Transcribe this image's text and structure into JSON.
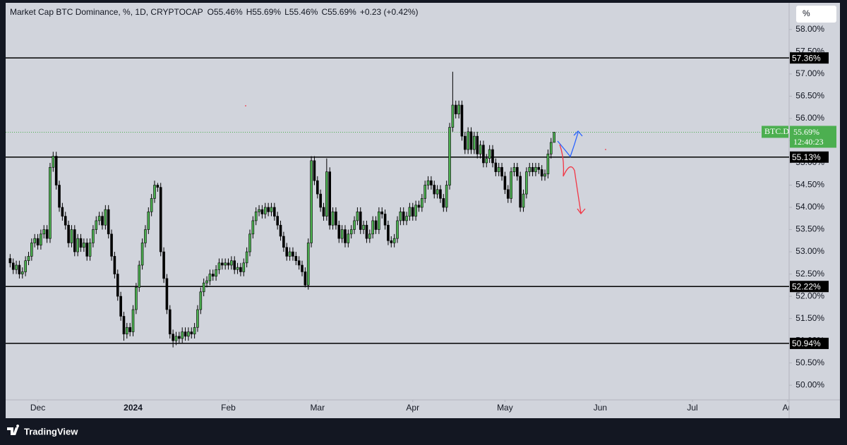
{
  "chart_data": {
    "type": "candlestick",
    "title": "Market Cap BTC Dominance, %, 1D, CRYPTOCAP",
    "ohlc_legend": [
      "O55.46%",
      "H55.69%",
      "L55.46%",
      "C55.69%",
      "+0.23 (+0.42%)"
    ],
    "x": [
      "2023-11-22",
      "2023-11-23",
      "2023-11-24",
      "2023-11-25",
      "2023-11-26",
      "2023-11-27",
      "2023-11-28",
      "2023-11-29",
      "2023-11-30",
      "2023-12-01",
      "2023-12-02",
      "2023-12-03",
      "2023-12-04",
      "2023-12-05",
      "2023-12-06",
      "2023-12-07",
      "2023-12-08",
      "2023-12-09",
      "2023-12-10",
      "2023-12-11",
      "2023-12-12",
      "2023-12-13",
      "2023-12-14",
      "2023-12-15",
      "2023-12-16",
      "2023-12-17",
      "2023-12-18",
      "2023-12-19",
      "2023-12-20",
      "2023-12-21",
      "2023-12-22",
      "2023-12-23",
      "2023-12-24",
      "2023-12-25",
      "2023-12-26",
      "2023-12-27",
      "2023-12-28",
      "2023-12-29",
      "2023-12-30",
      "2023-12-31",
      "2024-01-01",
      "2024-01-02",
      "2024-01-03",
      "2024-01-04",
      "2024-01-05",
      "2024-01-06",
      "2024-01-07",
      "2024-01-08",
      "2024-01-09",
      "2024-01-10",
      "2024-01-11",
      "2024-01-12",
      "2024-01-13",
      "2024-01-14",
      "2024-01-15",
      "2024-01-16",
      "2024-01-17",
      "2024-01-18",
      "2024-01-19",
      "2024-01-20",
      "2024-01-21",
      "2024-01-22",
      "2024-01-23",
      "2024-01-24",
      "2024-01-25",
      "2024-01-26",
      "2024-01-27",
      "2024-01-28",
      "2024-01-29",
      "2024-01-30",
      "2024-01-31",
      "2024-02-01",
      "2024-02-02",
      "2024-02-03",
      "2024-02-04",
      "2024-02-05",
      "2024-02-06",
      "2024-02-07",
      "2024-02-08",
      "2024-02-09",
      "2024-02-10",
      "2024-02-11",
      "2024-02-12",
      "2024-02-13",
      "2024-02-14",
      "2024-02-15",
      "2024-02-16",
      "2024-02-17",
      "2024-02-18",
      "2024-02-19",
      "2024-02-20",
      "2024-02-21",
      "2024-02-22",
      "2024-02-23",
      "2024-02-24",
      "2024-02-25",
      "2024-02-26",
      "2024-02-27",
      "2024-02-28",
      "2024-02-29",
      "2024-03-01",
      "2024-03-02",
      "2024-03-03",
      "2024-03-04",
      "2024-03-05",
      "2024-03-06",
      "2024-03-07",
      "2024-03-08",
      "2024-03-09",
      "2024-03-10",
      "2024-03-11",
      "2024-03-12",
      "2024-03-13",
      "2024-03-14",
      "2024-03-15",
      "2024-03-16",
      "2024-03-17",
      "2024-03-18",
      "2024-03-19",
      "2024-03-20",
      "2024-03-21",
      "2024-03-22",
      "2024-03-23",
      "2024-03-24",
      "2024-03-25",
      "2024-03-26",
      "2024-03-27",
      "2024-03-28",
      "2024-03-29",
      "2024-03-30",
      "2024-03-31",
      "2024-04-01",
      "2024-04-02",
      "2024-04-03",
      "2024-04-04",
      "2024-04-05",
      "2024-04-06",
      "2024-04-07",
      "2024-04-08",
      "2024-04-09",
      "2024-04-10",
      "2024-04-11",
      "2024-04-12",
      "2024-04-13",
      "2024-04-14",
      "2024-04-15",
      "2024-04-16",
      "2024-04-17",
      "2024-04-18",
      "2024-04-19",
      "2024-04-20",
      "2024-04-21",
      "2024-04-22",
      "2024-04-23",
      "2024-04-24",
      "2024-04-25",
      "2024-04-26",
      "2024-04-27",
      "2024-04-28",
      "2024-04-29",
      "2024-04-30",
      "2024-05-01",
      "2024-05-02",
      "2024-05-03",
      "2024-05-04",
      "2024-05-05",
      "2024-05-06",
      "2024-05-07",
      "2024-05-08",
      "2024-05-09",
      "2024-05-10",
      "2024-05-11",
      "2024-05-12",
      "2024-05-13",
      "2024-05-14",
      "2024-05-15",
      "2024-05-16",
      "2024-05-17"
    ],
    "open": [
      52.85,
      52.75,
      52.6,
      52.7,
      52.5,
      52.55,
      52.8,
      52.9,
      53.2,
      53.3,
      53.15,
      53.4,
      53.5,
      53.3,
      54.9,
      55.15,
      54.5,
      54.0,
      53.8,
      53.6,
      53.2,
      53.5,
      53.0,
      53.3,
      53.1,
      53.2,
      52.9,
      53.2,
      53.5,
      53.7,
      53.8,
      53.6,
      53.95,
      53.4,
      52.9,
      52.5,
      52.0,
      51.55,
      51.15,
      51.3,
      51.2,
      51.7,
      52.2,
      52.7,
      53.2,
      53.5,
      53.9,
      54.2,
      54.5,
      54.45,
      53.0,
      52.4,
      51.7,
      51.15,
      51.0,
      51.1,
      51.05,
      51.2,
      51.1,
      51.2,
      51.15,
      51.3,
      51.7,
      52.1,
      52.3,
      52.35,
      52.5,
      52.45,
      52.6,
      52.75,
      52.7,
      52.75,
      52.7,
      52.8,
      52.6,
      52.65,
      52.55,
      52.75,
      53.0,
      53.4,
      53.7,
      53.9,
      53.95,
      53.85,
      54.0,
      53.9,
      54.0,
      53.8,
      53.6,
      53.35,
      53.1,
      52.9,
      53.0,
      52.9,
      52.8,
      52.7,
      52.55,
      52.25,
      53.2,
      55.05,
      54.6,
      54.3,
      54.0,
      53.8,
      54.8,
      53.6,
      53.9,
      53.6,
      53.3,
      53.5,
      53.2,
      53.4,
      53.5,
      53.7,
      53.9,
      53.5,
      53.6,
      53.3,
      53.4,
      53.7,
      53.5,
      53.9,
      53.85,
      53.6,
      53.25,
      53.2,
      53.3,
      53.7,
      53.9,
      53.7,
      53.8,
      54.0,
      53.8,
      54.05,
      54.0,
      54.2,
      54.5,
      54.6,
      54.5,
      54.3,
      54.4,
      54.2,
      54.0,
      54.5,
      55.8,
      56.3,
      56.1,
      56.3,
      55.6,
      55.3,
      55.7,
      55.3,
      55.6,
      55.2,
      55.4,
      55.0,
      55.1,
      55.3,
      55.0,
      54.8,
      54.9,
      54.7,
      54.4,
      54.2,
      54.8,
      54.9,
      54.7,
      54.0,
      54.3,
      54.8,
      54.9,
      54.8,
      54.9,
      54.85,
      54.7,
      54.75,
      55.2,
      55.46
    ],
    "high": [
      52.95,
      52.85,
      52.8,
      52.8,
      52.65,
      52.9,
      53.0,
      53.3,
      53.4,
      53.4,
      53.5,
      53.6,
      53.6,
      55.0,
      55.25,
      55.25,
      54.6,
      54.1,
      53.9,
      53.7,
      53.6,
      53.6,
      53.4,
      53.4,
      53.3,
      53.3,
      53.3,
      53.6,
      53.8,
      53.9,
      53.9,
      54.05,
      54.05,
      53.5,
      53.0,
      52.6,
      52.1,
      51.65,
      51.4,
      51.4,
      51.8,
      52.3,
      52.8,
      53.3,
      53.6,
      54.0,
      54.3,
      54.6,
      54.55,
      54.55,
      53.1,
      52.5,
      51.8,
      51.25,
      51.2,
      51.2,
      51.3,
      51.3,
      51.3,
      51.3,
      51.4,
      51.8,
      52.2,
      52.4,
      52.45,
      52.6,
      52.6,
      52.7,
      52.85,
      52.85,
      52.85,
      52.85,
      52.9,
      52.9,
      52.75,
      52.75,
      52.85,
      53.1,
      53.5,
      53.8,
      54.0,
      54.05,
      54.05,
      54.1,
      54.1,
      54.1,
      54.1,
      53.9,
      53.7,
      53.45,
      53.2,
      53.1,
      53.1,
      53.0,
      52.9,
      52.8,
      52.65,
      53.3,
      55.15,
      55.15,
      54.7,
      54.4,
      54.1,
      55.1,
      54.9,
      54.0,
      54.0,
      53.7,
      53.6,
      53.6,
      53.5,
      53.6,
      53.8,
      54.0,
      54.0,
      53.7,
      53.7,
      53.5,
      53.8,
      53.8,
      54.0,
      54.0,
      53.95,
      53.7,
      53.35,
      53.4,
      53.8,
      54.0,
      54.0,
      53.9,
      54.1,
      54.1,
      54.15,
      54.15,
      54.3,
      54.6,
      54.7,
      54.7,
      54.6,
      54.5,
      54.5,
      54.3,
      54.6,
      55.9,
      57.05,
      56.4,
      56.4,
      56.4,
      55.7,
      55.8,
      55.8,
      55.7,
      55.7,
      55.5,
      55.5,
      55.2,
      55.4,
      55.4,
      55.1,
      55.0,
      55.0,
      54.8,
      54.5,
      54.9,
      55.0,
      55.0,
      54.8,
      54.4,
      54.9,
      55.0,
      55.0,
      55.0,
      55.0,
      54.95,
      54.85,
      55.3,
      55.56,
      55.69
    ],
    "low": [
      52.65,
      52.5,
      52.5,
      52.4,
      52.4,
      52.45,
      52.7,
      52.8,
      53.1,
      53.05,
      53.05,
      53.3,
      53.2,
      53.2,
      54.8,
      54.4,
      53.9,
      53.7,
      53.5,
      53.1,
      53.1,
      52.9,
      52.9,
      53.0,
      53.0,
      52.8,
      52.8,
      53.1,
      53.4,
      53.6,
      53.5,
      53.5,
      53.3,
      52.8,
      52.4,
      51.9,
      51.45,
      51.0,
      51.05,
      51.1,
      51.1,
      51.6,
      52.1,
      52.6,
      53.1,
      53.4,
      53.8,
      54.1,
      54.35,
      52.9,
      52.3,
      51.6,
      51.05,
      50.85,
      50.9,
      50.95,
      50.95,
      51.0,
      51.0,
      51.05,
      51.05,
      51.2,
      51.6,
      52.0,
      52.2,
      52.25,
      52.35,
      52.35,
      52.5,
      52.6,
      52.6,
      52.6,
      52.6,
      52.5,
      52.5,
      52.45,
      52.45,
      52.65,
      52.9,
      53.3,
      53.6,
      53.8,
      53.75,
      53.75,
      53.8,
      53.8,
      53.7,
      53.5,
      53.25,
      53.0,
      52.8,
      52.8,
      52.8,
      52.7,
      52.6,
      52.45,
      52.2,
      52.15,
      53.1,
      54.5,
      54.2,
      53.9,
      53.7,
      53.7,
      53.5,
      53.5,
      53.5,
      53.2,
      53.2,
      53.1,
      53.1,
      53.3,
      53.4,
      53.6,
      53.4,
      53.4,
      53.2,
      53.2,
      53.3,
      53.4,
      53.4,
      53.75,
      53.5,
      53.15,
      53.1,
      53.1,
      53.2,
      53.6,
      53.6,
      53.6,
      53.7,
      53.7,
      53.7,
      53.9,
      53.9,
      54.1,
      54.4,
      54.4,
      54.2,
      54.2,
      54.1,
      53.9,
      53.9,
      54.4,
      55.7,
      56.0,
      56.0,
      55.5,
      55.2,
      55.2,
      55.2,
      55.2,
      55.1,
      55.1,
      54.9,
      54.9,
      55.0,
      54.9,
      54.7,
      54.7,
      54.6,
      54.3,
      54.1,
      54.1,
      54.7,
      54.6,
      53.9,
      53.9,
      54.2,
      54.7,
      54.7,
      54.7,
      54.75,
      54.6,
      54.6,
      54.65,
      55.1,
      55.46
    ],
    "close": [
      52.75,
      52.6,
      52.7,
      52.5,
      52.55,
      52.8,
      52.9,
      53.2,
      53.3,
      53.15,
      53.4,
      53.5,
      53.3,
      54.9,
      55.15,
      54.5,
      54.0,
      53.8,
      53.6,
      53.2,
      53.5,
      53.0,
      53.3,
      53.1,
      53.2,
      52.9,
      53.2,
      53.5,
      53.7,
      53.8,
      53.6,
      53.95,
      53.4,
      52.9,
      52.5,
      52.0,
      51.55,
      51.15,
      51.3,
      51.2,
      51.7,
      52.2,
      52.7,
      53.2,
      53.5,
      53.9,
      54.2,
      54.5,
      54.45,
      53.0,
      52.4,
      51.7,
      51.15,
      51.0,
      51.1,
      51.05,
      51.2,
      51.1,
      51.2,
      51.15,
      51.3,
      51.7,
      52.1,
      52.3,
      52.35,
      52.5,
      52.45,
      52.6,
      52.75,
      52.7,
      52.75,
      52.7,
      52.8,
      52.6,
      52.65,
      52.55,
      52.75,
      53.0,
      53.4,
      53.7,
      53.9,
      53.95,
      53.85,
      54.0,
      53.9,
      54.0,
      53.8,
      53.6,
      53.35,
      53.1,
      52.9,
      53.0,
      52.9,
      52.8,
      52.7,
      52.55,
      52.25,
      53.2,
      55.05,
      54.6,
      54.3,
      54.0,
      53.8,
      54.8,
      53.6,
      53.9,
      53.6,
      53.3,
      53.5,
      53.2,
      53.4,
      53.5,
      53.7,
      53.9,
      53.5,
      53.6,
      53.3,
      53.4,
      53.7,
      53.5,
      53.9,
      53.85,
      53.6,
      53.25,
      53.2,
      53.3,
      53.7,
      53.9,
      53.7,
      53.8,
      54.0,
      53.8,
      54.05,
      54.0,
      54.2,
      54.5,
      54.6,
      54.5,
      54.3,
      54.4,
      54.2,
      54.0,
      54.5,
      55.8,
      56.3,
      56.1,
      56.3,
      55.6,
      55.3,
      55.7,
      55.3,
      55.6,
      55.2,
      55.4,
      55.0,
      55.1,
      55.3,
      55.0,
      54.8,
      54.9,
      54.7,
      54.4,
      54.2,
      54.8,
      54.9,
      54.7,
      54.0,
      54.3,
      54.8,
      54.9,
      54.8,
      54.9,
      54.85,
      54.7,
      54.75,
      55.2,
      55.46,
      55.69
    ],
    "up_color": "#4caf50",
    "down_color": "#000000",
    "xlim": [
      "2023-11-21",
      "2024-08-01"
    ],
    "xticks": [
      {
        "value": "2023-12-01",
        "label": "Dec"
      },
      {
        "value": "2024-01-01",
        "label": "2024"
      },
      {
        "value": "2024-02-01",
        "label": "Feb"
      },
      {
        "value": "2024-03-01",
        "label": "Mar"
      },
      {
        "value": "2024-04-01",
        "label": "Apr"
      },
      {
        "value": "2024-05-01",
        "label": "May"
      },
      {
        "value": "2024-06-01",
        "label": "Jun"
      },
      {
        "value": "2024-07-01",
        "label": "Jul"
      },
      {
        "value": "2024-08-01",
        "label": "Au"
      }
    ],
    "ylim": [
      49.67,
      58.6
    ],
    "yticks": [
      {
        "value": 50,
        "label": "50.00%"
      },
      {
        "value": 50.5,
        "label": "50.50%"
      },
      {
        "value": 51,
        "label": "51.00%"
      },
      {
        "value": 51.5,
        "label": "51.50%"
      },
      {
        "value": 52,
        "label": "52.00%"
      },
      {
        "value": 52.5,
        "label": "52.50%"
      },
      {
        "value": 53,
        "label": "53.00%"
      },
      {
        "value": 53.5,
        "label": "53.50%"
      },
      {
        "value": 54,
        "label": "54.00%"
      },
      {
        "value": 54.5,
        "label": "54.50%"
      },
      {
        "value": 55,
        "label": "55.00%"
      },
      {
        "value": 55.5,
        "label": "55.50%"
      },
      {
        "value": 56,
        "label": "56.00%"
      },
      {
        "value": 56.5,
        "label": "56.50%"
      },
      {
        "value": 57,
        "label": "57.00%"
      },
      {
        "value": 57.5,
        "label": "57.50%"
      },
      {
        "value": 58,
        "label": "58.00%"
      }
    ],
    "hlines": [
      {
        "value": 57.36,
        "label": "57.36%"
      },
      {
        "value": 55.13,
        "label": "55.13%"
      },
      {
        "value": 52.22,
        "label": "52.22%"
      },
      {
        "value": 50.94,
        "label": "50.94%"
      }
    ],
    "last_price": {
      "symbol": "BTC.D",
      "value": 55.69,
      "label": "55.69%",
      "countdown": "12:40:23",
      "color": "#4caf50"
    },
    "scale_button": "%"
  },
  "footer": {
    "brand": "TradingView"
  }
}
